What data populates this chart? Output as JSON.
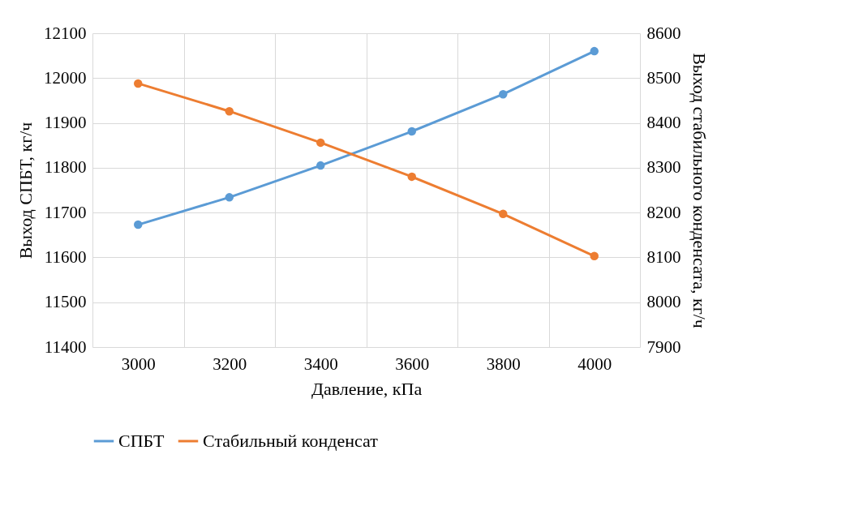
{
  "chart_data": {
    "type": "line",
    "xlabel": "Давление, кПа",
    "ylabel": "Выход СПБТ, кг/ч",
    "y2label": "Выход стабильного конденсата, кг/ч",
    "categories": [
      "3000",
      "3200",
      "3400",
      "3600",
      "3800",
      "4000"
    ],
    "series": [
      {
        "name": "СПБТ",
        "color": "#5b9bd5",
        "values": [
          11673,
          11734,
          11805,
          11881,
          11964,
          12060
        ]
      },
      {
        "name": "Стабильный конденсат",
        "color": "#ed7d31",
        "axis": "y2",
        "values": [
          8488,
          8426,
          8356,
          8280,
          8197,
          8103
        ]
      }
    ],
    "ylim": [
      11400,
      12100
    ],
    "yticks": [
      11400,
      11500,
      11600,
      11700,
      11800,
      11900,
      12000,
      12100
    ],
    "y2lim": [
      7900,
      8600
    ],
    "y2ticks": [
      7900,
      8000,
      8100,
      8200,
      8300,
      8400,
      8500,
      8600
    ],
    "grid": true,
    "legend": "bottom",
    "marker": "circle",
    "line_style": "solid"
  }
}
